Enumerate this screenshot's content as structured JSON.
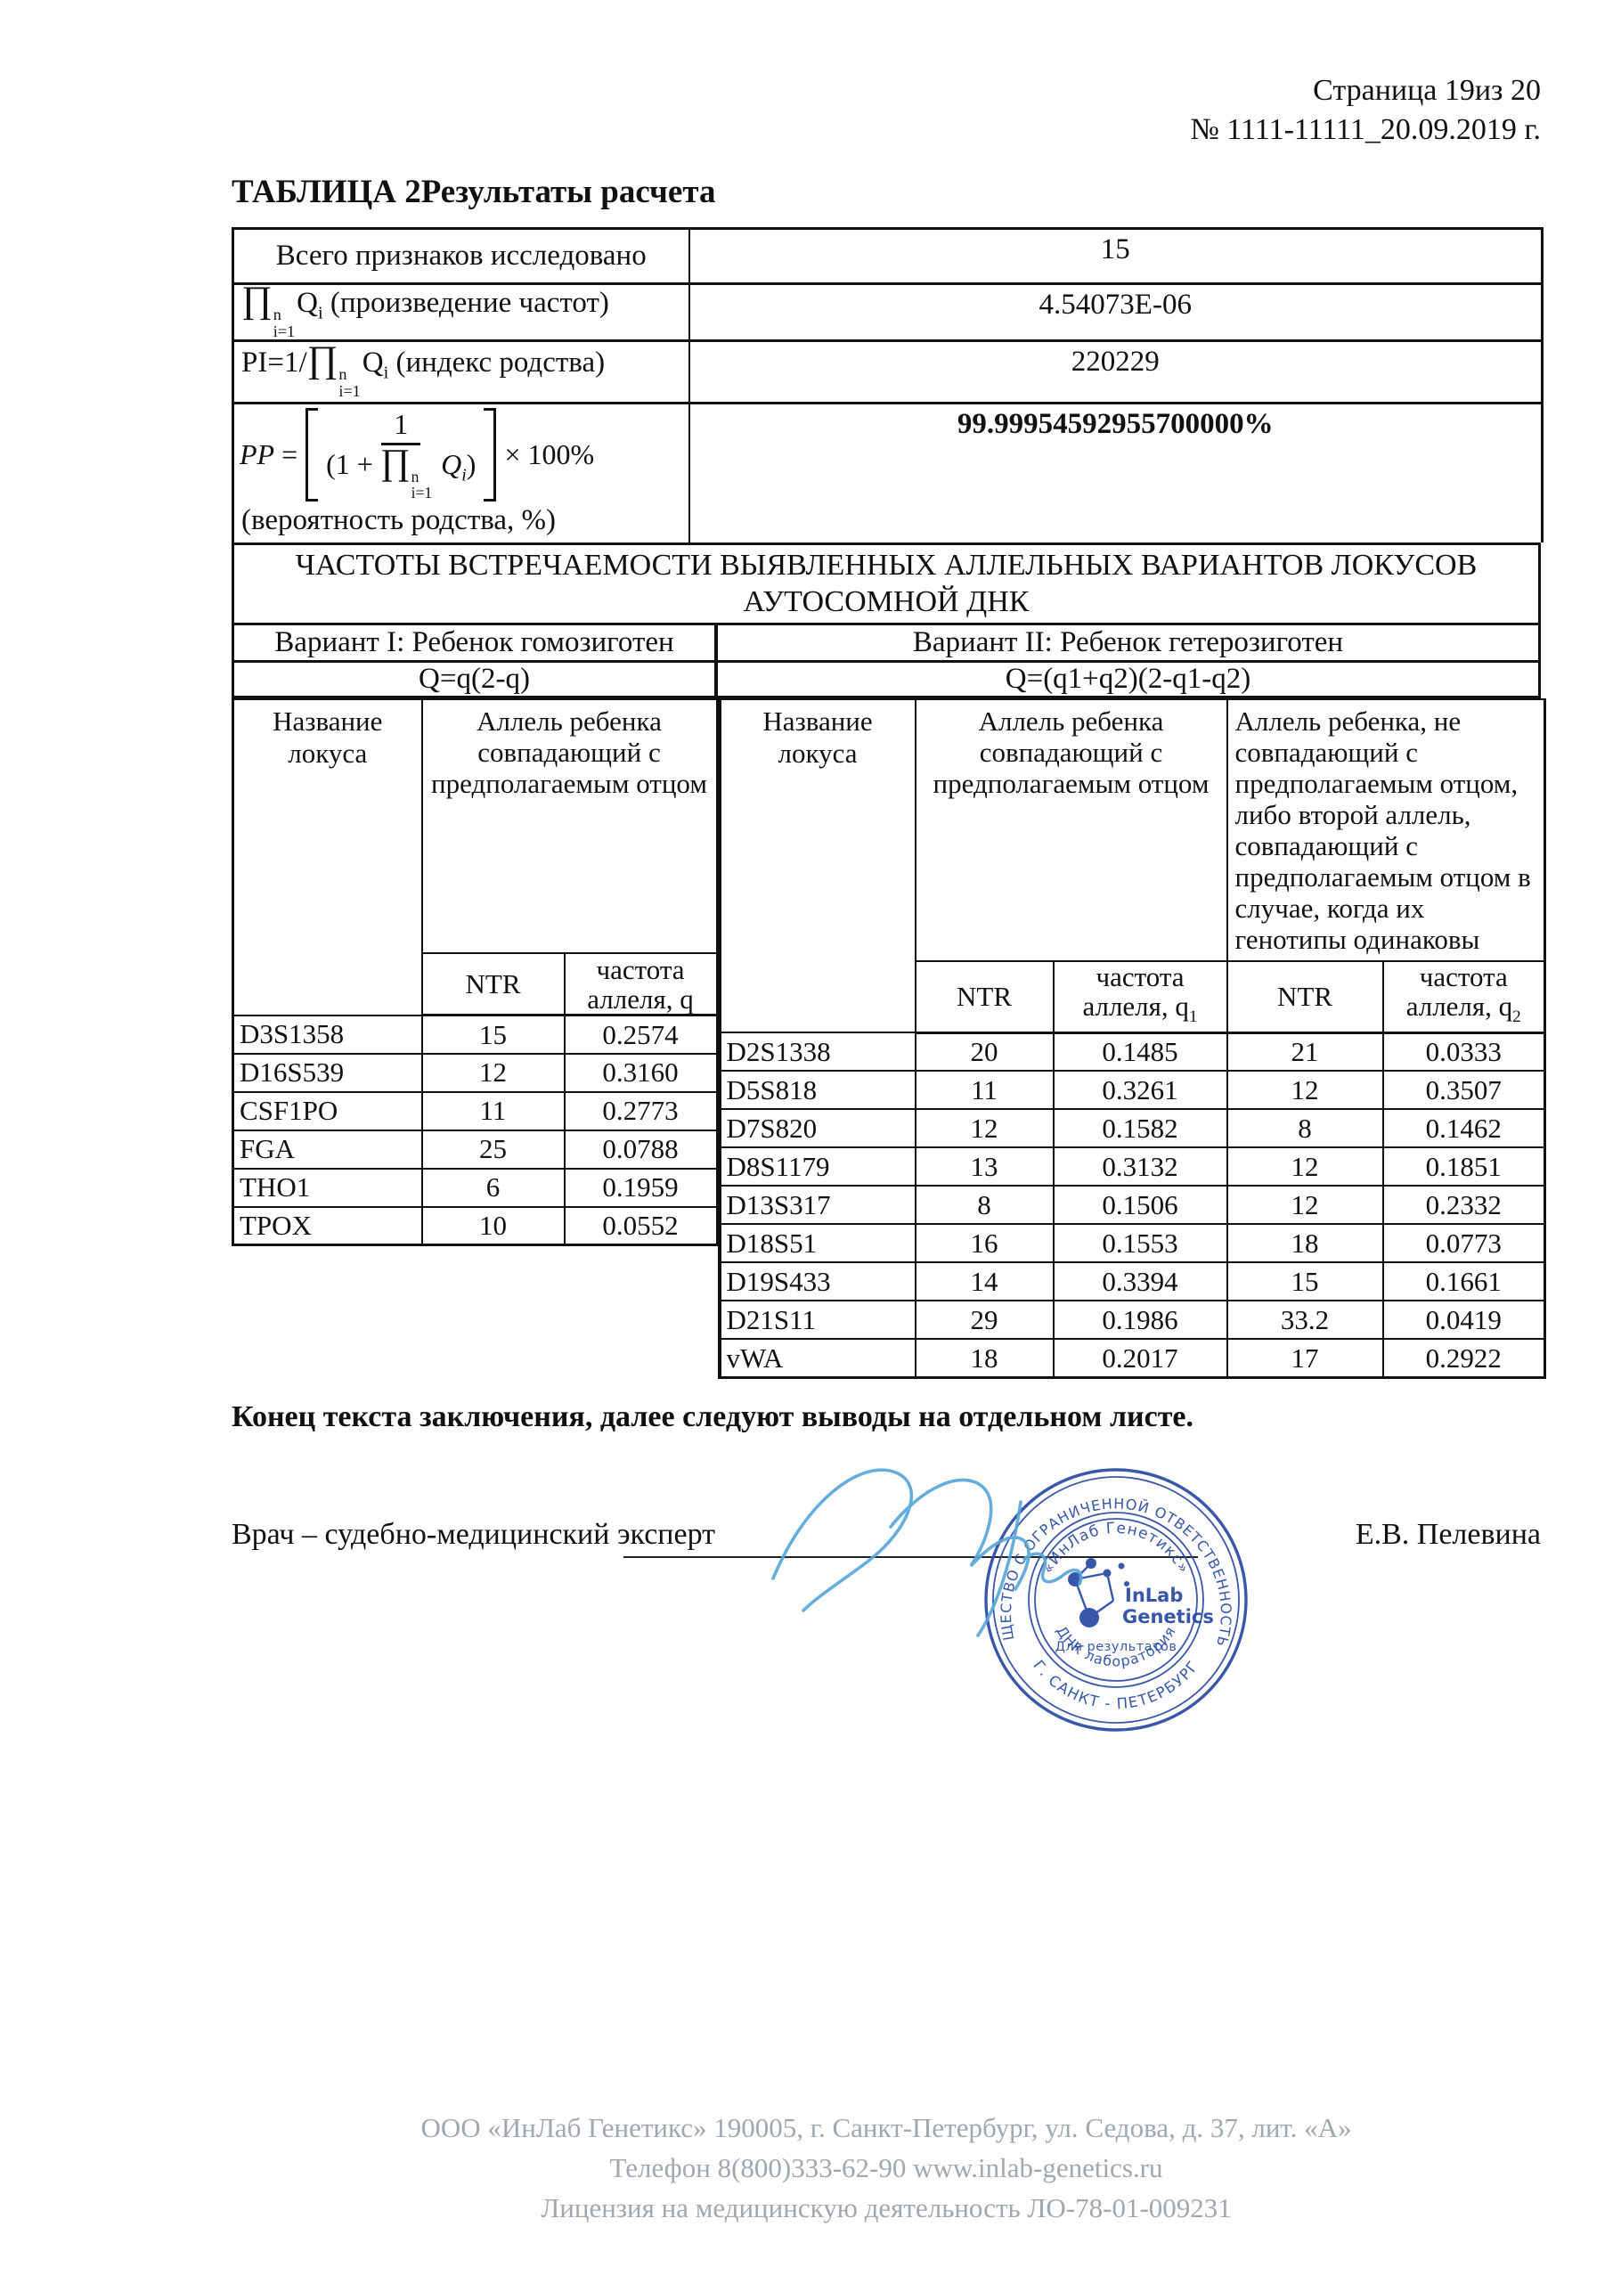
{
  "page": {
    "header_line1": "Страница 19из 20",
    "header_line2": "№ 1111-11111_20.09.2019 г.",
    "title": "ТАБЛИЦА 2Результаты расчета"
  },
  "results_table": {
    "rows": [
      {
        "label": "Всего признаков исследовано",
        "value": "15"
      },
      {
        "label_html": "<span class=\"prod\">∏</span><span class=\"ss\"><span>n</span><span>i=1</span></span>Q<sub>i</sub> (произведение частот)",
        "value": "4.54073E-06"
      },
      {
        "label_html": "PI=1/<span class=\"prod\">∏</span><span class=\"ss\"><span>n</span><span>i=1</span></span>Q<sub>i</sub> (индекс родства)",
        "value": "220229"
      }
    ],
    "pp": {
      "lhs_html": "<i>PP</i> =",
      "numerator": "1",
      "denominator_html": "(1 + <span class=\"prod\">∏</span><span class=\"ss\"><span>n</span><span>i=1</span></span> <i>Q<sub>i</sub></i>)",
      "multiplier": "× 100%",
      "caption": "(вероятность родства, %)",
      "value": "99.99954592955700000%"
    }
  },
  "freq_section": {
    "title_line1": "ЧАСТОТЫ ВСТРЕЧАЕМОСТИ ВЫЯВЛЕННЫХ АЛЛЕЛЬНЫХ ВАРИАНТОВ ЛОКУСОВ",
    "title_line2": "АУТОСОМНОЙ ДНК",
    "variant1": {
      "title": "Вариант I: Ребенок гомозиготен",
      "formula": "Q=q(2-q)",
      "locus_header": "Название локуса",
      "allele_header": "Аллель ребенка совпадающий с предполагаемым отцом",
      "ntr_label": "NTR",
      "freq_label_html": "частота<br>аллеля, q",
      "rows": [
        [
          "D3S1358",
          "15",
          "0.2574"
        ],
        [
          "D16S539",
          "12",
          "0.3160"
        ],
        [
          "CSF1PO",
          "11",
          "0.2773"
        ],
        [
          "FGA",
          "25",
          "0.0788"
        ],
        [
          "THO1",
          "6",
          "0.1959"
        ],
        [
          "TPOX",
          "10",
          "0.0552"
        ]
      ]
    },
    "variant2": {
      "title": "Вариант II: Ребенок гетерозиготен",
      "formula": "Q=(q1+q2)(2-q1-q2)",
      "locus_header": "Название локуса",
      "allele_match_header": "Аллель ребенка совпадающий с предполагаемым отцом",
      "allele_nomatch_header": "Аллель ребенка, не совпадающий с предполагаемым отцом, либо второй аллель, совпадающий с предполагаемым отцом в случае, когда их генотипы одинаковы",
      "ntr_label": "NTR",
      "freq1_label_html": "частота<br>аллеля, q<sub>1</sub>",
      "freq2_label_html": "частота<br>аллеля, q<sub>2</sub>",
      "rows": [
        [
          "D2S1338",
          "20",
          "0.1485",
          "21",
          "0.0333"
        ],
        [
          "D5S818",
          "11",
          "0.3261",
          "12",
          "0.3507"
        ],
        [
          "D7S820",
          "12",
          "0.1582",
          "8",
          "0.1462"
        ],
        [
          "D8S1179",
          "13",
          "0.3132",
          "12",
          "0.1851"
        ],
        [
          "D13S317",
          "8",
          "0.1506",
          "12",
          "0.2332"
        ],
        [
          "D18S51",
          "16",
          "0.1553",
          "18",
          "0.0773"
        ],
        [
          "D19S433",
          "14",
          "0.3394",
          "15",
          "0.1661"
        ],
        [
          "D21S11",
          "29",
          "0.1986",
          "33.2",
          "0.0419"
        ],
        [
          "vWA",
          "18",
          "0.2017",
          "17",
          "0.2922"
        ]
      ]
    }
  },
  "closing": {
    "end_note": "Конец текста заключения, далее следуют выводы на отдельном листе.",
    "signer_role": "Врач – судебно-медицинский эксперт",
    "signer_name": "Е.В. Пелевина"
  },
  "stamp": {
    "color": "#2b4ba4",
    "outer_top": "ОБЩЕСТВО С ОГРАНИЧЕННОЙ ОТВЕТСТВЕННОСТЬЮ",
    "outer_bottom": "Г. САНКТ - ПЕТЕРБУРГ",
    "inner_top": "«ИнЛаб Генетикс»",
    "inner_bottom": "ДНК лаборатория",
    "logo_line1": "InLab",
    "logo_line2": "Genetics",
    "tagline": "Для результатов"
  },
  "footer": {
    "line1": "ООО «ИнЛаб Генетикс» 190005, г. Санкт-Петербург, ул. Седова, д. 37, лит. «А»",
    "line2": "Телефон 8(800)333-62-90 www.inlab-genetics.ru",
    "line3": "Лицензия на медицинскую деятельность ЛО-78-01-009231"
  }
}
